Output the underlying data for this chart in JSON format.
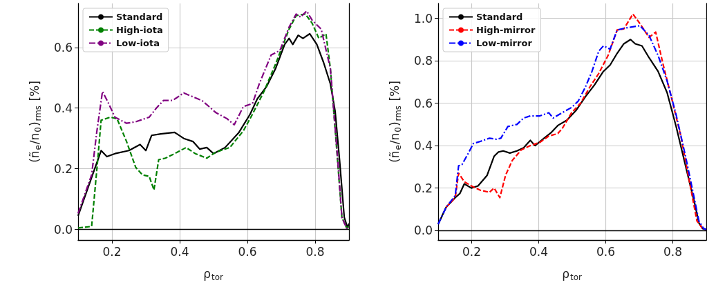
{
  "chart_data": [
    {
      "type": "line",
      "xlabel": "ρ$_{tor}$",
      "ylabel": "(ñ$_{e}$/n$_{0}$)$_{rms}$ [%]",
      "xlim": [
        0.1,
        0.9
      ],
      "ylim": [
        -0.035,
        0.745
      ],
      "xticks": [
        0.2,
        0.4,
        0.6,
        0.8
      ],
      "yticks": [
        {
          "value": 0,
          "label": "0.0"
        },
        {
          "value": 0.2,
          "label": "0.2"
        },
        {
          "value": 0.4,
          "label": "0.4"
        },
        {
          "value": 0.6,
          "label": "0.6"
        }
      ],
      "grid": true,
      "legend": "top left",
      "marker": "none",
      "series": [
        {
          "name": "Standard",
          "color": "#000000",
          "line_style": "solid",
          "x": [
            0.1,
            0.168,
            0.185,
            0.209,
            0.25,
            0.283,
            0.3,
            0.317,
            0.344,
            0.385,
            0.412,
            0.439,
            0.459,
            0.48,
            0.5,
            0.534,
            0.575,
            0.608,
            0.629,
            0.656,
            0.683,
            0.71,
            0.723,
            0.734,
            0.75,
            0.764,
            0.784,
            0.805,
            0.825,
            0.845,
            0.859,
            0.872,
            0.886,
            0.896,
            0.9
          ],
          "values": [
            0.045,
            0.26,
            0.24,
            0.25,
            0.26,
            0.28,
            0.26,
            0.31,
            0.315,
            0.32,
            0.3,
            0.29,
            0.265,
            0.27,
            0.25,
            0.27,
            0.32,
            0.38,
            0.43,
            0.47,
            0.53,
            0.61,
            0.63,
            0.61,
            0.64,
            0.63,
            0.645,
            0.61,
            0.55,
            0.48,
            0.39,
            0.23,
            0.04,
            0.005,
            0.02
          ]
        },
        {
          "name": "High-iota",
          "color": "#008000",
          "line_style": "dashed",
          "x": [
            0.1,
            0.14,
            0.158,
            0.168,
            0.195,
            0.215,
            0.243,
            0.27,
            0.29,
            0.31,
            0.324,
            0.338,
            0.358,
            0.385,
            0.419,
            0.446,
            0.48,
            0.507,
            0.548,
            0.588,
            0.615,
            0.649,
            0.683,
            0.723,
            0.744,
            0.771,
            0.791,
            0.811,
            0.832,
            0.845,
            0.866,
            0.879,
            0.893,
            0.9
          ],
          "values": [
            0.005,
            0.01,
            0.23,
            0.36,
            0.37,
            0.365,
            0.29,
            0.205,
            0.18,
            0.175,
            0.13,
            0.23,
            0.235,
            0.25,
            0.27,
            0.25,
            0.235,
            0.255,
            0.27,
            0.325,
            0.38,
            0.455,
            0.545,
            0.66,
            0.705,
            0.71,
            0.68,
            0.63,
            0.645,
            0.53,
            0.23,
            0.04,
            0.005,
            0.01
          ]
        },
        {
          "name": "Low-iota",
          "color": "#800080",
          "line_style": "dashdot",
          "x": [
            0.1,
            0.14,
            0.155,
            0.172,
            0.188,
            0.209,
            0.243,
            0.27,
            0.31,
            0.331,
            0.352,
            0.379,
            0.412,
            0.433,
            0.466,
            0.507,
            0.54,
            0.561,
            0.588,
            0.615,
            0.635,
            0.67,
            0.696,
            0.723,
            0.744,
            0.757,
            0.775,
            0.791,
            0.818,
            0.845,
            0.866,
            0.879,
            0.893,
            0.9
          ],
          "values": [
            0.053,
            0.18,
            0.32,
            0.455,
            0.42,
            0.37,
            0.35,
            0.355,
            0.37,
            0.4,
            0.425,
            0.425,
            0.45,
            0.44,
            0.425,
            0.385,
            0.365,
            0.345,
            0.405,
            0.415,
            0.48,
            0.575,
            0.59,
            0.667,
            0.71,
            0.7,
            0.72,
            0.69,
            0.66,
            0.53,
            0.24,
            0.04,
            0.004,
            0.01
          ]
        }
      ]
    },
    {
      "type": "line",
      "xlabel": "ρ$_{tor}$",
      "ylabel": "(ñ$_{e}$/n$_{0}$)$_{rms}$ [%]",
      "xlim": [
        0.1,
        0.9
      ],
      "ylim": [
        -0.045,
        1.07
      ],
      "xticks": [
        0.2,
        0.4,
        0.6,
        0.8
      ],
      "yticks": [
        {
          "value": 0,
          "label": "0.0"
        },
        {
          "value": 0.2,
          "label": "0.2"
        },
        {
          "value": 0.4,
          "label": "0.4"
        },
        {
          "value": 0.6,
          "label": "0.6"
        },
        {
          "value": 0.8,
          "label": "0.8"
        },
        {
          "value": 1,
          "label": "1.0"
        }
      ],
      "grid": true,
      "legend": "top left",
      "marker": "none",
      "series": [
        {
          "name": "Standard",
          "color": "#000000",
          "line_style": "solid",
          "x": [
            0.1,
            0.124,
            0.151,
            0.165,
            0.178,
            0.199,
            0.219,
            0.246,
            0.267,
            0.28,
            0.294,
            0.314,
            0.335,
            0.355,
            0.375,
            0.389,
            0.416,
            0.436,
            0.457,
            0.484,
            0.511,
            0.539,
            0.566,
            0.593,
            0.613,
            0.634,
            0.654,
            0.674,
            0.688,
            0.708,
            0.729,
            0.756,
            0.783,
            0.81,
            0.838,
            0.865,
            0.878,
            0.889,
            0.9
          ],
          "values": [
            0.03,
            0.11,
            0.155,
            0.175,
            0.22,
            0.2,
            0.21,
            0.26,
            0.35,
            0.37,
            0.375,
            0.365,
            0.375,
            0.39,
            0.425,
            0.4,
            0.435,
            0.46,
            0.495,
            0.52,
            0.565,
            0.63,
            0.685,
            0.75,
            0.78,
            0.835,
            0.88,
            0.9,
            0.88,
            0.87,
            0.815,
            0.75,
            0.65,
            0.49,
            0.305,
            0.13,
            0.035,
            0.009,
            0.005
          ]
        },
        {
          "name": "High-mirror",
          "color": "#ff0000",
          "line_style": "dashed",
          "x": [
            0.124,
            0.151,
            0.161,
            0.178,
            0.199,
            0.226,
            0.253,
            0.267,
            0.284,
            0.301,
            0.321,
            0.348,
            0.375,
            0.403,
            0.43,
            0.457,
            0.47,
            0.498,
            0.525,
            0.552,
            0.579,
            0.607,
            0.634,
            0.654,
            0.681,
            0.702,
            0.729,
            0.749,
            0.77,
            0.797,
            0.824,
            0.851,
            0.872,
            0.889,
            0.9
          ],
          "values": [
            0.11,
            0.155,
            0.27,
            0.23,
            0.21,
            0.19,
            0.18,
            0.2,
            0.155,
            0.26,
            0.33,
            0.38,
            0.4,
            0.415,
            0.445,
            0.457,
            0.48,
            0.555,
            0.6,
            0.675,
            0.74,
            0.825,
            0.945,
            0.95,
            1.02,
            0.975,
            0.91,
            0.935,
            0.79,
            0.62,
            0.445,
            0.22,
            0.045,
            0.009,
            0.005
          ]
        },
        {
          "name": "Low-mirror",
          "color": "#0000ff",
          "line_style": "dashdot",
          "x": [
            0.1,
            0.124,
            0.151,
            0.161,
            0.171,
            0.192,
            0.205,
            0.226,
            0.253,
            0.274,
            0.287,
            0.308,
            0.335,
            0.355,
            0.375,
            0.403,
            0.43,
            0.443,
            0.47,
            0.498,
            0.518,
            0.539,
            0.559,
            0.579,
            0.593,
            0.613,
            0.634,
            0.661,
            0.702,
            0.729,
            0.756,
            0.783,
            0.81,
            0.838,
            0.865,
            0.878,
            0.892,
            0.9
          ],
          "values": [
            0.03,
            0.11,
            0.165,
            0.305,
            0.31,
            0.37,
            0.41,
            0.42,
            0.435,
            0.43,
            0.435,
            0.49,
            0.5,
            0.53,
            0.54,
            0.54,
            0.555,
            0.53,
            0.555,
            0.58,
            0.61,
            0.675,
            0.75,
            0.845,
            0.87,
            0.855,
            0.945,
            0.955,
            0.965,
            0.92,
            0.825,
            0.705,
            0.545,
            0.35,
            0.145,
            0.045,
            0.009,
            0.005
          ]
        }
      ]
    }
  ]
}
